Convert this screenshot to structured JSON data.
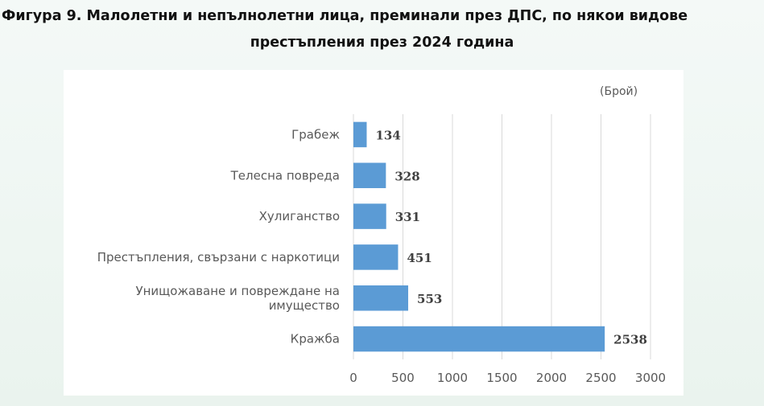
{
  "title": {
    "line1": "Фигура 9. Малолетни и непълнолетни лица, преминали през ДПС, по някои видове",
    "line2": "престъпления през 2024 година"
  },
  "unit_label": "(Брой)",
  "chart_data": {
    "type": "bar",
    "orientation": "horizontal",
    "categories": [
      [
        "Грабеж"
      ],
      [
        "Телесна повреда"
      ],
      [
        "Хулиганство"
      ],
      [
        "Престъпления, свързани с наркотици"
      ],
      [
        "Унищожаване и повреждане на",
        "имущество"
      ],
      [
        "Кражба"
      ]
    ],
    "values": [
      134,
      328,
      331,
      451,
      553,
      2538
    ],
    "xticks": [
      0,
      500,
      1000,
      1500,
      2000,
      2500,
      3000
    ],
    "xlim": [
      0,
      3000
    ],
    "grid": true,
    "bar_color": "#5b9bd5",
    "grid_color": "#d9d9d9"
  }
}
